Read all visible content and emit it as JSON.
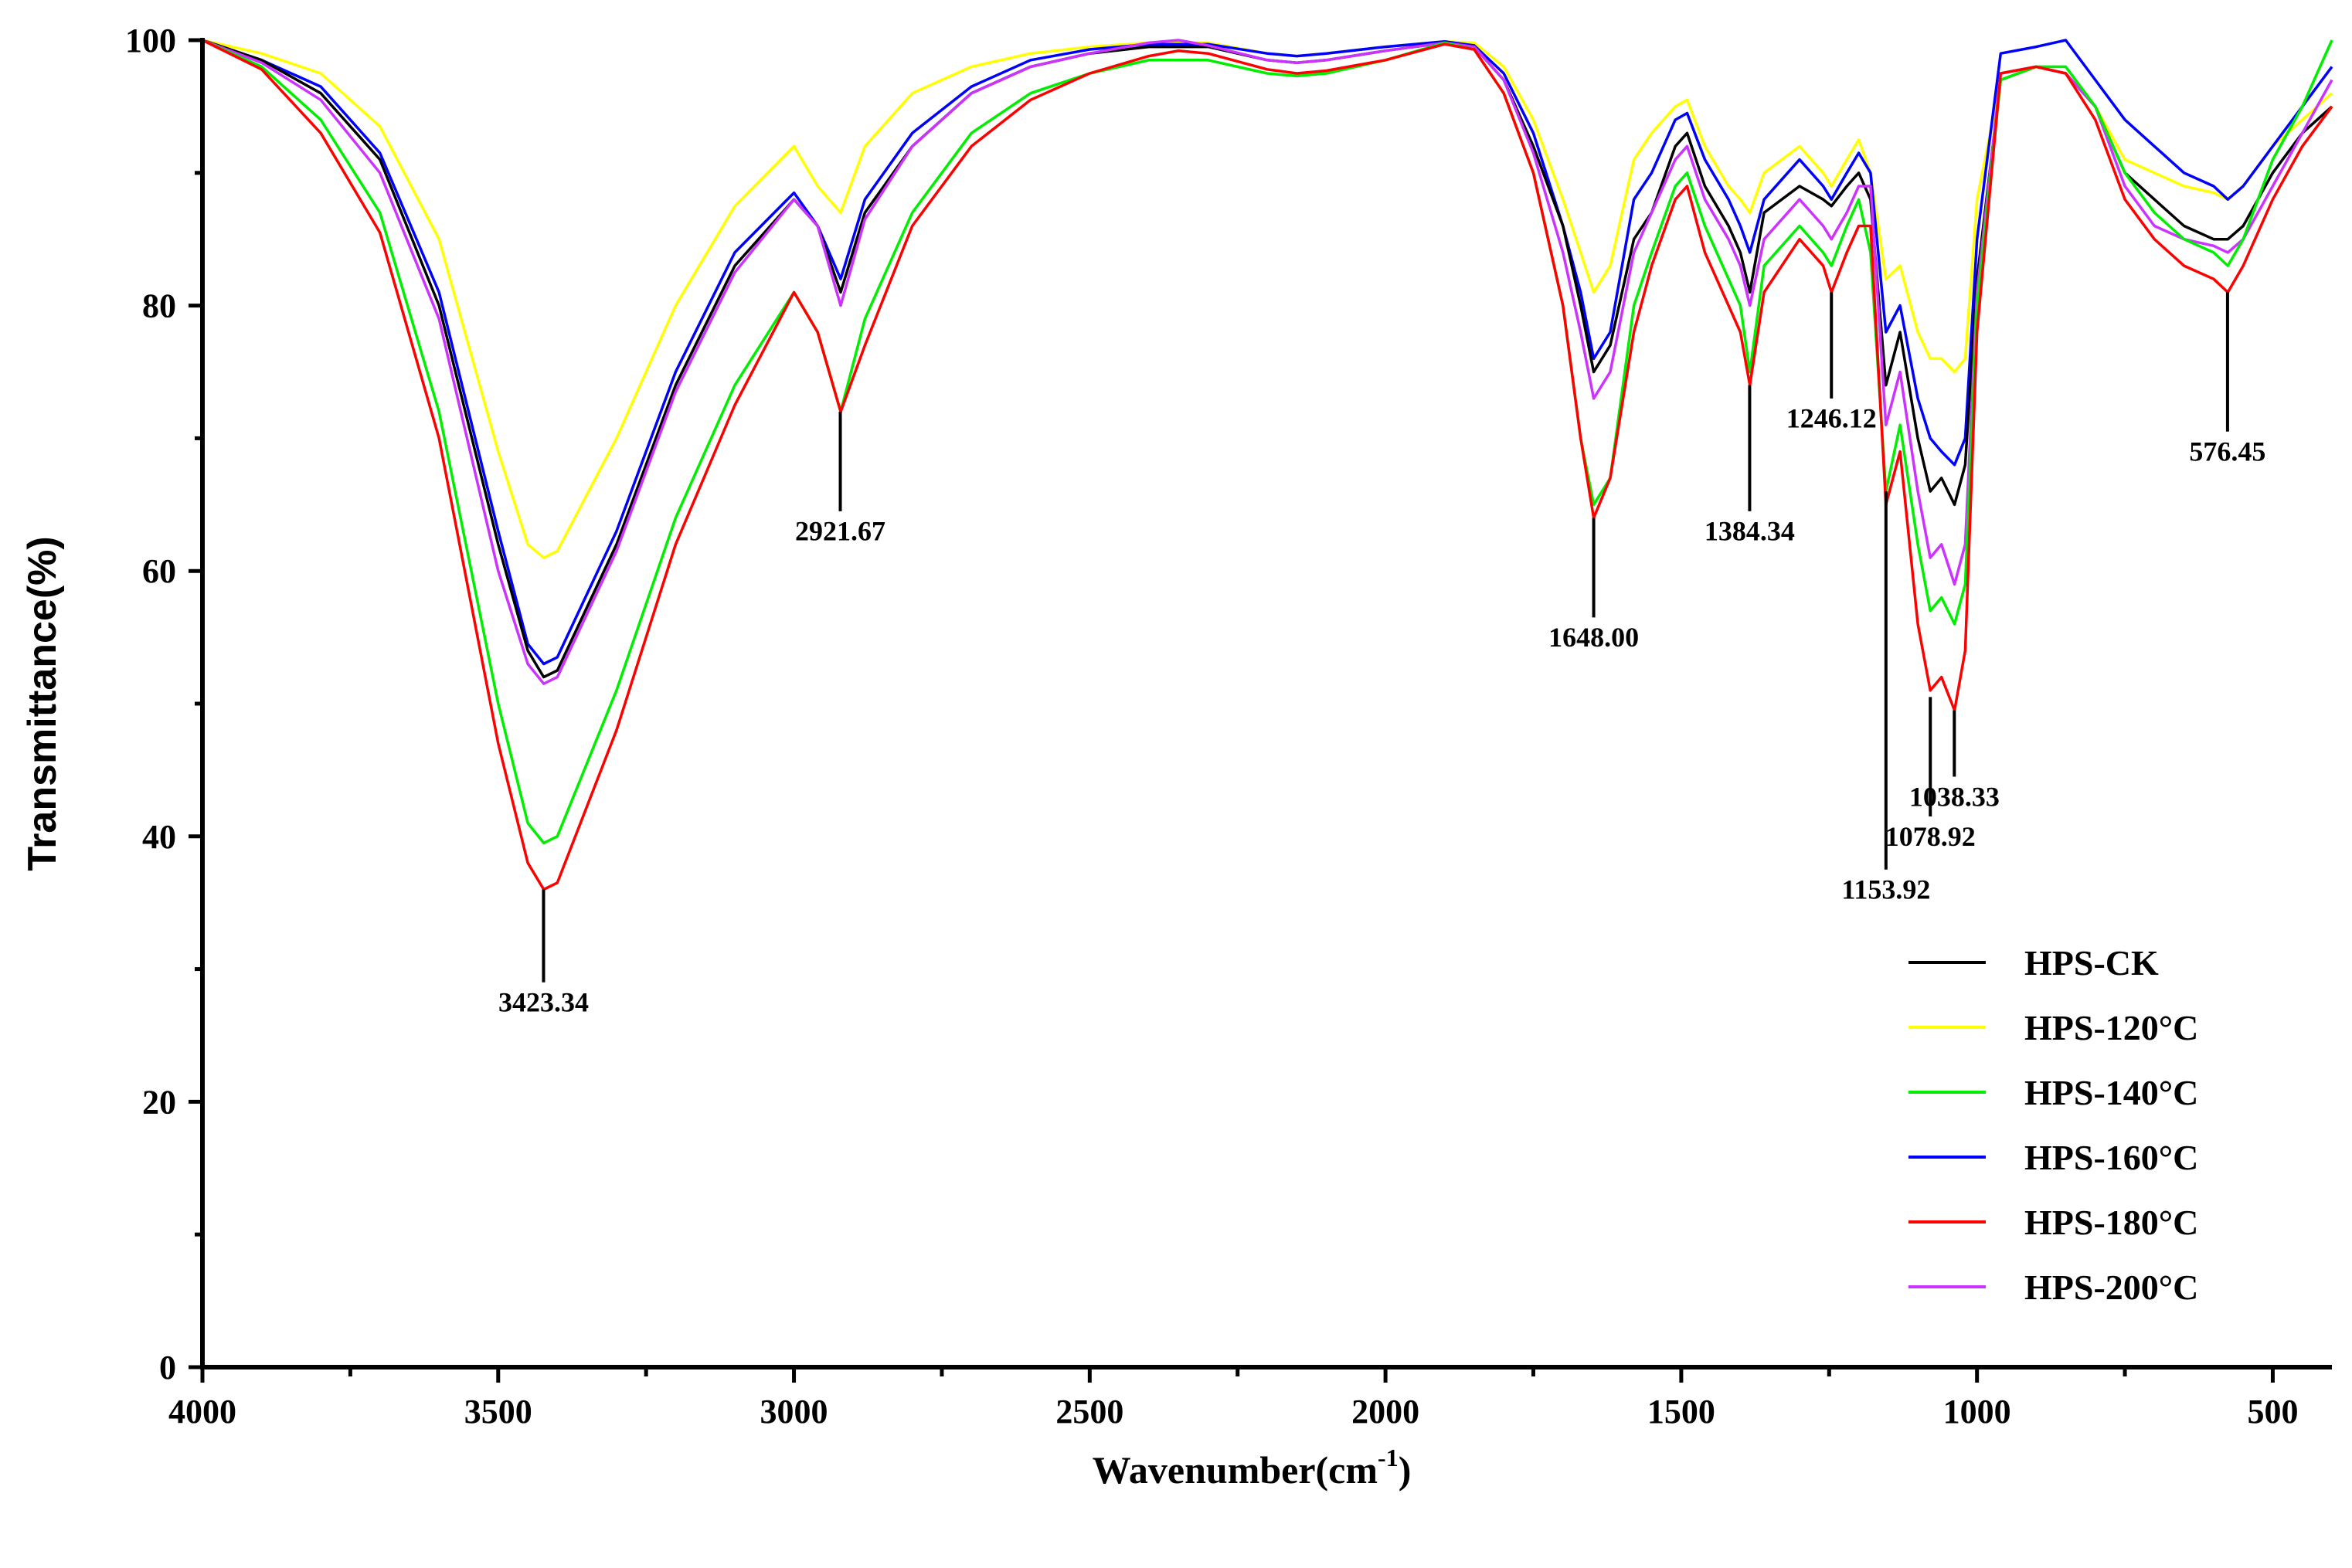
{
  "chart_data": {
    "type": "line",
    "xlabel": "Wavenumber(cm",
    "xlabel_sup": "-1",
    "xlabel_close": ")",
    "ylabel": "Transmittance(%)",
    "xlim": [
      4000,
      400
    ],
    "ylim": [
      0,
      100
    ],
    "x_ticks": [
      4000,
      3500,
      3000,
      2500,
      2000,
      1500,
      1000,
      500
    ],
    "y_ticks": [
      0,
      20,
      40,
      60,
      80,
      100
    ],
    "legend_position": "bottom-right",
    "x": [
      4000,
      3900,
      3800,
      3700,
      3600,
      3500,
      3450,
      3423,
      3400,
      3300,
      3200,
      3100,
      3000,
      2960,
      2921,
      2880,
      2800,
      2700,
      2600,
      2500,
      2400,
      2350,
      2300,
      2200,
      2150,
      2100,
      2000,
      1900,
      1850,
      1800,
      1750,
      1700,
      1670,
      1648,
      1620,
      1580,
      1550,
      1510,
      1490,
      1460,
      1420,
      1400,
      1384,
      1360,
      1300,
      1260,
      1246,
      1220,
      1200,
      1180,
      1154,
      1130,
      1100,
      1079,
      1060,
      1038,
      1020,
      1000,
      960,
      900,
      850,
      800,
      750,
      700,
      650,
      600,
      576,
      550,
      500,
      450,
      400
    ],
    "series": [
      {
        "name": "HPS-CK",
        "color": "#000000",
        "values": [
          100,
          98.5,
          96,
          91,
          80,
          62,
          54,
          52,
          52.5,
          62,
          74,
          83,
          88,
          86,
          81,
          87,
          92,
          96,
          98,
          99,
          99.5,
          99.5,
          99.5,
          98.5,
          98.3,
          98.5,
          99.2,
          99.8,
          99.5,
          97,
          92,
          86,
          80,
          75,
          77,
          85,
          87,
          92,
          93,
          89,
          86,
          84,
          81,
          87,
          89,
          88,
          87.5,
          89,
          90,
          88,
          74,
          78,
          70,
          66,
          67,
          65,
          68,
          82,
          97,
          98,
          97.5,
          95,
          90,
          88,
          86,
          85,
          85,
          86,
          90,
          93,
          95
        ]
      },
      {
        "name": "HPS-120°C",
        "color": "#ffff00",
        "values": [
          100,
          99,
          97.5,
          93.5,
          85,
          69,
          62,
          61,
          61.5,
          70,
          80,
          87.5,
          92,
          89,
          87,
          92,
          96,
          98,
          99,
          99.5,
          99.8,
          99.8,
          99.8,
          99,
          98.8,
          99,
          99.5,
          99.9,
          99.8,
          98,
          94,
          88,
          84,
          81,
          83,
          91,
          93,
          95,
          95.5,
          92,
          89,
          88,
          87,
          90,
          92,
          90,
          89,
          91,
          92.5,
          90,
          82,
          83,
          78,
          76,
          76,
          75,
          76,
          88,
          97,
          98,
          97.5,
          95,
          91,
          90,
          89,
          88.5,
          88,
          89,
          92,
          94,
          96
        ]
      },
      {
        "name": "HPS-140°C",
        "color": "#00ee00",
        "values": [
          100,
          98,
          94,
          87,
          72,
          50,
          41,
          39.5,
          40,
          51,
          64,
          74,
          81,
          78,
          72,
          79,
          87,
          93,
          96,
          97.5,
          98.5,
          98.5,
          98.5,
          97.5,
          97.3,
          97.5,
          98.5,
          99.8,
          99.3,
          96,
          90,
          80,
          70,
          65,
          67,
          80,
          84,
          89,
          90,
          86,
          82,
          80,
          75,
          83,
          86,
          84,
          83,
          86,
          88,
          84,
          66,
          71,
          62,
          57,
          58,
          56,
          59,
          80,
          97,
          98,
          98,
          95,
          90,
          87,
          85,
          84,
          83,
          85,
          91,
          95,
          100
        ]
      },
      {
        "name": "HPS-160°C",
        "color": "#0000ff",
        "values": [
          100,
          98.5,
          96.5,
          91.5,
          81,
          63,
          54.5,
          53,
          53.5,
          63,
          75,
          84,
          88.5,
          86,
          82,
          88,
          93,
          96.5,
          98.5,
          99.3,
          99.7,
          99.7,
          99.7,
          99,
          98.8,
          99,
          99.5,
          99.9,
          99.6,
          97.5,
          93,
          86,
          81,
          76,
          78,
          88,
          90,
          94,
          94.5,
          91,
          88,
          86,
          84,
          88,
          91,
          89,
          88,
          90,
          91.5,
          90,
          78,
          80,
          73,
          70,
          69,
          68,
          70,
          85,
          99,
          99.5,
          100,
          97,
          94,
          92,
          90,
          89,
          88,
          89,
          92,
          95,
          98
        ]
      },
      {
        "name": "HPS-180°C",
        "color": "#ff0000",
        "values": [
          100,
          97.8,
          93,
          85.5,
          70,
          47,
          38,
          36,
          36.5,
          48,
          62,
          72.5,
          81,
          78,
          72,
          77,
          86,
          92,
          95.5,
          97.5,
          98.8,
          99.2,
          99,
          97.8,
          97.5,
          97.7,
          98.5,
          99.7,
          99.3,
          96,
          90,
          80,
          70,
          64,
          67,
          78,
          83,
          88,
          89,
          84,
          80,
          78,
          74,
          81,
          85,
          83,
          81,
          84,
          86,
          86,
          65,
          69,
          56,
          51,
          52,
          49.5,
          54,
          78,
          97.5,
          98,
          97.5,
          94,
          88,
          85,
          83,
          82,
          81,
          83,
          88,
          92,
          95
        ]
      },
      {
        "name": "HPS-200°C",
        "color": "#cc33ff",
        "values": [
          100,
          98.3,
          95.5,
          90,
          79,
          60,
          53,
          51.5,
          52,
          61.5,
          73.5,
          82.5,
          88,
          86,
          80,
          86.5,
          92,
          96,
          98,
          99,
          99.8,
          100,
          99.6,
          98.5,
          98.3,
          98.5,
          99.2,
          99.8,
          99.5,
          97,
          91.5,
          84,
          78,
          73,
          75,
          84,
          87,
          91,
          92,
          88,
          85,
          83,
          80,
          85,
          88,
          86,
          85,
          87,
          89,
          89,
          71,
          75,
          66,
          61,
          62,
          59,
          62,
          81,
          97.5,
          98,
          97.5,
          95,
          89,
          86,
          85,
          84.5,
          84,
          85,
          89,
          93,
          97
        ]
      }
    ],
    "annotations": [
      {
        "label": "3423.34",
        "x": 3423.34,
        "from": 36,
        "to": 29,
        "label_at": 27.5
      },
      {
        "label": "2921.67",
        "x": 2921.67,
        "from": 72,
        "to": 64.5,
        "label_at": 63
      },
      {
        "label": "1648.00",
        "x": 1648.0,
        "from": 64,
        "to": 56.5,
        "label_at": 55
      },
      {
        "label": "1384.34",
        "x": 1384.34,
        "from": 74,
        "to": 64.5,
        "label_at": 63
      },
      {
        "label": "1246.12",
        "x": 1246.12,
        "from": 81,
        "to": 73,
        "label_at": 71.5
      },
      {
        "label": "1153.92",
        "x": 1153.92,
        "from": 66,
        "to": 37.5,
        "label_at": 36
      },
      {
        "label": "1078.92",
        "x": 1078.92,
        "from": 50.5,
        "to": 41.5,
        "label_at": 40
      },
      {
        "label": "1038.33",
        "x": 1038.33,
        "from": 49.5,
        "to": 44.5,
        "label_at": 43
      },
      {
        "label": "576.45",
        "x": 576.45,
        "from": 81,
        "to": 70.5,
        "label_at": 69
      }
    ]
  }
}
